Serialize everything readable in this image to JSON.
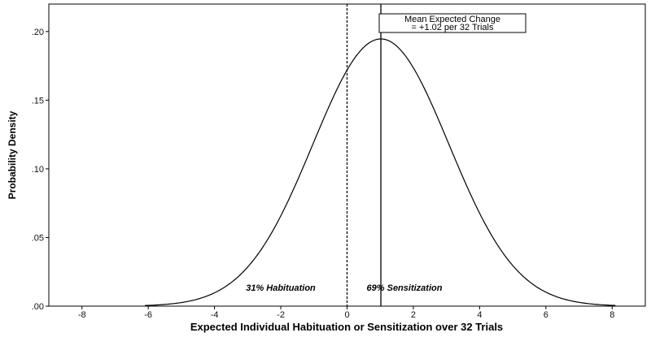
{
  "chart_data": {
    "type": "line",
    "title": "",
    "xlabel": "Expected Individual Habituation or Sensitization over 32 Trials",
    "ylabel": "Probability Density",
    "xlim": [
      -9,
      9
    ],
    "ylim": [
      0,
      0.22
    ],
    "x_ticks": [
      -8,
      -6,
      -4,
      -2,
      0,
      2,
      4,
      6,
      8
    ],
    "x_tick_labels": [
      "-8",
      "-6",
      "-4",
      "-2",
      "0",
      "2",
      "4",
      "6",
      "8"
    ],
    "y_ticks": [
      0,
      0.05,
      0.1,
      0.15,
      0.2
    ],
    "y_tick_labels": [
      ".00",
      ".05",
      ".10",
      ".15",
      ".20"
    ],
    "grid": false,
    "distribution": {
      "kind": "normal",
      "mean": 1.02,
      "sd": 2.05,
      "x_range": [
        -6.1,
        8.1
      ]
    },
    "reference_lines": [
      {
        "x": 0,
        "style": "dashed"
      },
      {
        "x": 1.02,
        "style": "solid"
      }
    ],
    "annotations": {
      "mean_box_line1": "Mean Expected Change",
      "mean_box_line2": "= +1.02 per 32 Trials",
      "habituation_label": "31% Habituation",
      "sensitization_label": "69% Sensitization"
    },
    "colors": {
      "curve": "#000000",
      "frame": "#000000",
      "background": "#ffffff"
    }
  }
}
